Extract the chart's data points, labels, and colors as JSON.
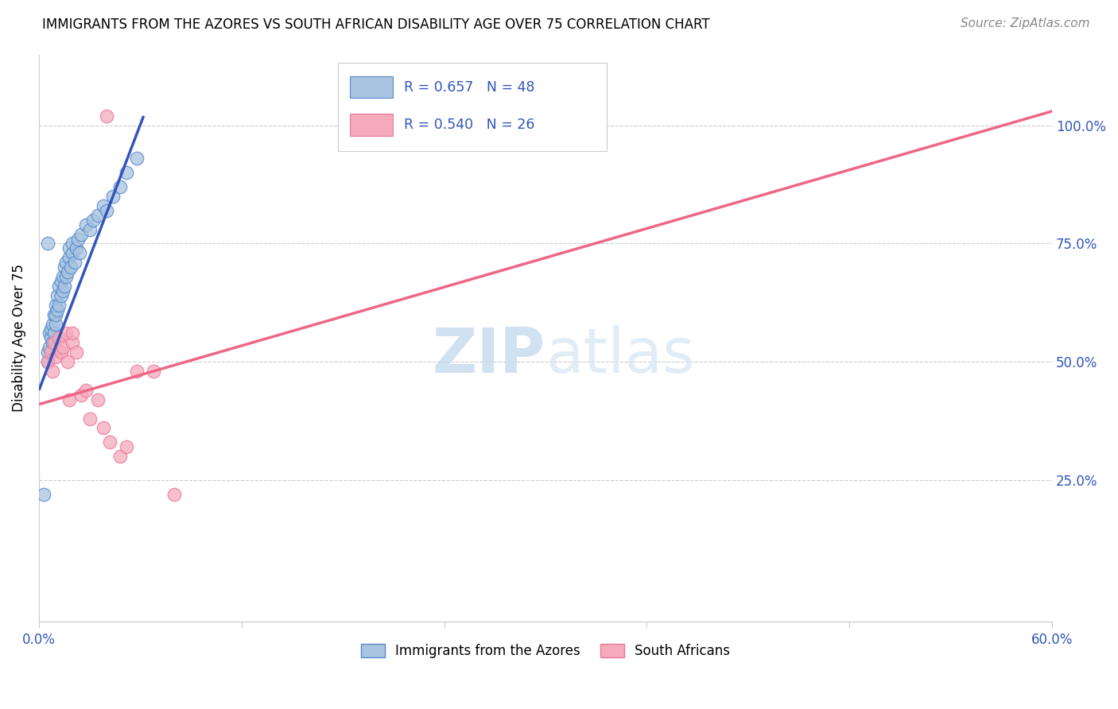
{
  "title": "IMMIGRANTS FROM THE AZORES VS SOUTH AFRICAN DISABILITY AGE OVER 75 CORRELATION CHART",
  "source": "Source: ZipAtlas.com",
  "ylabel": "Disability Age Over 75",
  "xlim": [
    0.0,
    0.6
  ],
  "ylim": [
    -0.05,
    1.15
  ],
  "xticks": [
    0.0,
    0.12,
    0.24,
    0.36,
    0.48,
    0.6
  ],
  "xtick_labels": [
    "0.0%",
    "",
    "",
    "",
    "",
    "60.0%"
  ],
  "ytick_labels": [
    "25.0%",
    "50.0%",
    "75.0%",
    "100.0%"
  ],
  "yticks": [
    0.25,
    0.5,
    0.75,
    1.0
  ],
  "blue_R": 0.657,
  "blue_N": 48,
  "pink_R": 0.54,
  "pink_N": 26,
  "blue_color": "#A8C4E0",
  "pink_color": "#F4AABB",
  "blue_edge_color": "#5588CC",
  "pink_edge_color": "#EE7799",
  "blue_line_color": "#3355BB",
  "pink_line_color": "#EE6688",
  "watermark_zip": "ZIP",
  "watermark_atlas": "atlas",
  "blue_scatter_x": [
    0.005,
    0.005,
    0.006,
    0.006,
    0.007,
    0.007,
    0.008,
    0.008,
    0.009,
    0.009,
    0.01,
    0.01,
    0.01,
    0.011,
    0.011,
    0.012,
    0.012,
    0.013,
    0.013,
    0.014,
    0.014,
    0.015,
    0.015,
    0.016,
    0.016,
    0.017,
    0.018,
    0.018,
    0.019,
    0.02,
    0.02,
    0.021,
    0.022,
    0.023,
    0.024,
    0.025,
    0.028,
    0.03,
    0.032,
    0.035,
    0.038,
    0.04,
    0.044,
    0.048,
    0.052,
    0.058,
    0.005,
    0.003
  ],
  "blue_scatter_y": [
    0.5,
    0.52,
    0.53,
    0.56,
    0.55,
    0.57,
    0.54,
    0.58,
    0.56,
    0.6,
    0.58,
    0.6,
    0.62,
    0.61,
    0.64,
    0.62,
    0.66,
    0.64,
    0.67,
    0.65,
    0.68,
    0.66,
    0.7,
    0.68,
    0.71,
    0.69,
    0.72,
    0.74,
    0.7,
    0.73,
    0.75,
    0.71,
    0.74,
    0.76,
    0.73,
    0.77,
    0.79,
    0.78,
    0.8,
    0.81,
    0.83,
    0.82,
    0.85,
    0.87,
    0.9,
    0.93,
    0.75,
    0.22
  ],
  "pink_scatter_x": [
    0.005,
    0.007,
    0.008,
    0.009,
    0.01,
    0.012,
    0.013,
    0.014,
    0.016,
    0.017,
    0.018,
    0.02,
    0.02,
    0.022,
    0.025,
    0.028,
    0.03,
    0.035,
    0.038,
    0.042,
    0.048,
    0.052,
    0.058,
    0.068,
    0.08,
    0.04
  ],
  "pink_scatter_y": [
    0.5,
    0.52,
    0.48,
    0.54,
    0.51,
    0.55,
    0.52,
    0.53,
    0.56,
    0.5,
    0.42,
    0.54,
    0.56,
    0.52,
    0.43,
    0.44,
    0.38,
    0.42,
    0.36,
    0.33,
    0.3,
    0.32,
    0.48,
    0.48,
    0.22,
    1.02
  ],
  "blue_trend_x": [
    0.0,
    0.062
  ],
  "blue_trend_y": [
    0.44,
    1.02
  ],
  "pink_trend_x": [
    0.0,
    0.6
  ],
  "pink_trend_y": [
    0.41,
    1.03
  ]
}
